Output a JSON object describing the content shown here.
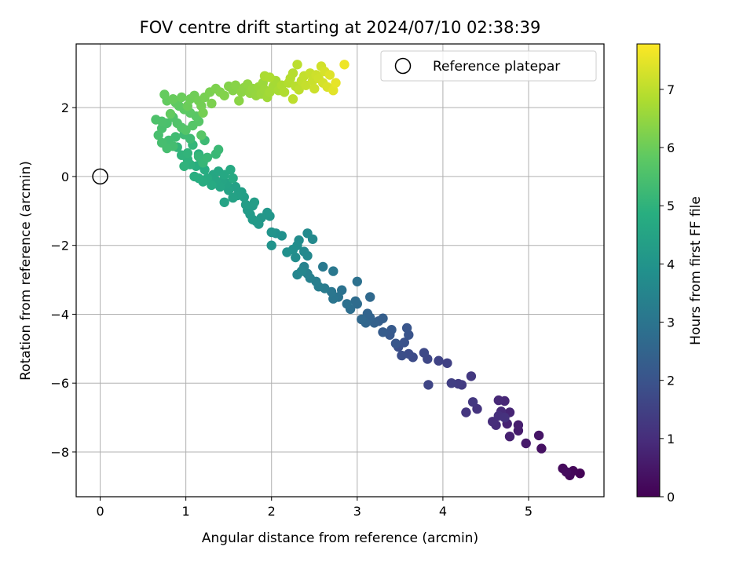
{
  "chart_data": {
    "type": "scatter",
    "title": "FOV centre drift starting at 2024/07/10 02:38:39",
    "xlabel": "Angular distance from reference (arcmin)",
    "ylabel": "Rotation from reference (arcmin)",
    "xlim": [
      -0.28,
      5.88
    ],
    "ylim": [
      -9.3,
      3.85
    ],
    "xticks": [
      0,
      1,
      2,
      3,
      4,
      5
    ],
    "yticks": [
      -8,
      -6,
      -4,
      -2,
      0,
      2
    ],
    "grid": true,
    "legend": {
      "position": "top-right",
      "entries": [
        "Reference platepar"
      ]
    },
    "reference_point": {
      "x": 0,
      "y": 0,
      "label": "Reference platepar",
      "marker": "open-circle"
    },
    "colorbar": {
      "label": "Hours from first FF file",
      "colormap": "viridis",
      "range": [
        0,
        7.78
      ],
      "ticks": [
        0,
        1,
        2,
        3,
        4,
        5,
        6,
        7
      ]
    },
    "points_note": "Colour value c = hours from first FF file",
    "points": [
      [
        5.6,
        -8.62,
        0.05
      ],
      [
        5.52,
        -8.55,
        0.1
      ],
      [
        5.48,
        -8.68,
        0.15
      ],
      [
        5.4,
        -8.48,
        0.2
      ],
      [
        5.44,
        -8.58,
        0.25
      ],
      [
        5.15,
        -7.9,
        0.35
      ],
      [
        5.12,
        -7.52,
        0.45
      ],
      [
        4.97,
        -7.75,
        0.55
      ],
      [
        4.88,
        -7.38,
        0.6
      ],
      [
        4.88,
        -7.22,
        0.65
      ],
      [
        4.78,
        -7.55,
        0.7
      ],
      [
        4.75,
        -7.18,
        0.75
      ],
      [
        4.78,
        -6.85,
        0.8
      ],
      [
        4.72,
        -6.52,
        0.85
      ],
      [
        4.65,
        -6.5,
        0.88
      ],
      [
        4.68,
        -6.82,
        0.92
      ],
      [
        4.62,
        -7.22,
        0.95
      ],
      [
        4.58,
        -7.12,
        1.0
      ],
      [
        4.65,
        -6.95,
        1.05
      ],
      [
        4.72,
        -7.0,
        1.1
      ],
      [
        4.4,
        -6.75,
        1.15
      ],
      [
        4.27,
        -6.85,
        1.2
      ],
      [
        4.35,
        -6.55,
        1.25
      ],
      [
        4.33,
        -5.8,
        1.3
      ],
      [
        4.22,
        -6.05,
        1.35
      ],
      [
        4.18,
        -6.02,
        1.4
      ],
      [
        4.1,
        -6.0,
        1.45
      ],
      [
        4.05,
        -5.42,
        1.5
      ],
      [
        3.95,
        -5.35,
        1.55
      ],
      [
        3.83,
        -6.05,
        1.6
      ],
      [
        3.82,
        -5.3,
        1.65
      ],
      [
        3.78,
        -5.12,
        1.7
      ],
      [
        3.65,
        -5.25,
        1.75
      ],
      [
        3.6,
        -5.15,
        1.8
      ],
      [
        3.52,
        -5.2,
        1.85
      ],
      [
        3.48,
        -4.95,
        1.9
      ],
      [
        3.55,
        -4.82,
        1.95
      ],
      [
        3.6,
        -4.6,
        2.0
      ],
      [
        3.58,
        -4.4,
        2.05
      ],
      [
        3.45,
        -4.85,
        2.1
      ],
      [
        3.38,
        -4.6,
        2.15
      ],
      [
        3.4,
        -4.45,
        2.2
      ],
      [
        3.3,
        -4.52,
        2.25
      ],
      [
        3.25,
        -4.2,
        2.3
      ],
      [
        3.3,
        -4.12,
        2.35
      ],
      [
        3.2,
        -4.25,
        2.4
      ],
      [
        3.15,
        -4.1,
        2.45
      ],
      [
        3.12,
        -3.98,
        2.5
      ],
      [
        3.1,
        -4.25,
        2.55
      ],
      [
        3.05,
        -4.15,
        2.6
      ],
      [
        3.15,
        -3.5,
        2.65
      ],
      [
        3.0,
        -3.7,
        2.7
      ],
      [
        2.98,
        -3.62,
        2.75
      ],
      [
        2.92,
        -3.85,
        2.8
      ],
      [
        2.88,
        -3.7,
        2.85
      ],
      [
        3.0,
        -3.05,
        2.88
      ],
      [
        2.82,
        -3.3,
        2.92
      ],
      [
        2.78,
        -3.5,
        2.95
      ],
      [
        2.72,
        -3.55,
        3.0
      ],
      [
        2.7,
        -3.35,
        3.05
      ],
      [
        2.72,
        -2.75,
        3.1
      ],
      [
        2.6,
        -2.62,
        3.15
      ],
      [
        2.62,
        -3.25,
        3.2
      ],
      [
        2.55,
        -3.2,
        3.25
      ],
      [
        2.52,
        -3.05,
        3.3
      ],
      [
        2.45,
        -2.95,
        3.35
      ],
      [
        2.42,
        -2.82,
        3.4
      ],
      [
        2.38,
        -2.62,
        3.45
      ],
      [
        2.3,
        -2.85,
        3.5
      ],
      [
        2.35,
        -2.75,
        3.55
      ],
      [
        2.42,
        -2.3,
        3.6
      ],
      [
        2.38,
        -2.18,
        3.62
      ],
      [
        2.48,
        -1.82,
        3.65
      ],
      [
        2.42,
        -1.65,
        3.68
      ],
      [
        2.32,
        -1.85,
        3.72
      ],
      [
        2.3,
        -2.0,
        3.75
      ],
      [
        2.28,
        -2.35,
        3.78
      ],
      [
        2.25,
        -2.12,
        3.82
      ],
      [
        2.18,
        -2.2,
        3.85
      ],
      [
        2.12,
        -1.72,
        3.88
      ],
      [
        2.05,
        -1.65,
        3.9
      ],
      [
        2.0,
        -2.0,
        3.95
      ],
      [
        2.0,
        -1.62,
        4.0
      ],
      [
        1.98,
        -1.15,
        4.05
      ],
      [
        1.95,
        -1.05,
        4.08
      ],
      [
        1.88,
        -1.2,
        4.1
      ],
      [
        1.85,
        -1.38,
        4.12
      ],
      [
        1.82,
        -1.3,
        4.15
      ],
      [
        1.78,
        -1.25,
        4.18
      ],
      [
        1.75,
        -1.1,
        4.2
      ],
      [
        1.72,
        -0.98,
        4.22
      ],
      [
        1.78,
        -0.85,
        4.25
      ],
      [
        1.8,
        -0.75,
        4.28
      ],
      [
        1.7,
        -0.82,
        4.3
      ],
      [
        1.68,
        -0.6,
        4.32
      ],
      [
        1.65,
        -0.45,
        4.35
      ],
      [
        1.6,
        -0.55,
        4.38
      ],
      [
        1.58,
        -0.3,
        4.4
      ],
      [
        1.55,
        -0.62,
        4.42
      ],
      [
        1.5,
        -0.4,
        4.45
      ],
      [
        1.45,
        -0.75,
        4.48
      ],
      [
        1.48,
        -0.2,
        4.5
      ],
      [
        1.42,
        -0.15,
        4.52
      ],
      [
        1.4,
        -0.3,
        4.55
      ],
      [
        1.35,
        -0.12,
        4.58
      ],
      [
        1.32,
        0.05,
        4.6
      ],
      [
        1.38,
        0.15,
        4.62
      ],
      [
        1.45,
        0.05,
        4.65
      ],
      [
        1.52,
        0.2,
        4.68
      ],
      [
        1.55,
        -0.05,
        4.7
      ],
      [
        1.3,
        -0.25,
        4.72
      ],
      [
        1.25,
        -0.05,
        4.75
      ],
      [
        1.22,
        0.2,
        4.78
      ],
      [
        1.2,
        -0.15,
        4.8
      ],
      [
        1.15,
        -0.05,
        4.82
      ],
      [
        1.1,
        0.0,
        4.85
      ],
      [
        1.12,
        0.3,
        4.88
      ],
      [
        1.18,
        0.45,
        4.9
      ],
      [
        1.15,
        0.65,
        4.92
      ],
      [
        1.05,
        0.35,
        4.95
      ],
      [
        1.02,
        0.5,
        4.98
      ],
      [
        0.98,
        0.3,
        5.0
      ],
      [
        0.95,
        0.62,
        5.02
      ],
      [
        1.02,
        0.68,
        5.05
      ],
      [
        0.9,
        0.85,
        5.08
      ],
      [
        1.08,
        0.92,
        5.1
      ],
      [
        1.15,
        0.58,
        5.12
      ],
      [
        1.2,
        0.4,
        5.15
      ],
      [
        1.25,
        0.55,
        5.18
      ],
      [
        1.35,
        0.65,
        5.2
      ],
      [
        1.38,
        0.78,
        5.22
      ],
      [
        1.22,
        1.05,
        5.25
      ],
      [
        1.05,
        1.1,
        5.28
      ],
      [
        0.98,
        1.22,
        5.3
      ],
      [
        0.88,
        1.15,
        5.32
      ],
      [
        0.8,
        1.05,
        5.35
      ],
      [
        0.85,
        0.88,
        5.38
      ],
      [
        0.78,
        0.82,
        5.4
      ],
      [
        0.72,
        0.98,
        5.42
      ],
      [
        0.68,
        1.2,
        5.45
      ],
      [
        0.72,
        1.4,
        5.48
      ],
      [
        0.78,
        1.55,
        5.5
      ],
      [
        0.72,
        1.6,
        5.52
      ],
      [
        0.65,
        1.65,
        5.55
      ],
      [
        0.85,
        1.72,
        5.58
      ],
      [
        0.9,
        1.55,
        5.6
      ],
      [
        0.95,
        1.42,
        5.62
      ],
      [
        1.0,
        1.35,
        5.65
      ],
      [
        1.08,
        1.48,
        5.68
      ],
      [
        1.15,
        1.6,
        5.7
      ],
      [
        1.18,
        1.2,
        5.72
      ],
      [
        1.12,
        1.75,
        5.75
      ],
      [
        1.05,
        1.85,
        5.78
      ],
      [
        0.98,
        1.95,
        5.8
      ],
      [
        0.92,
        2.05,
        5.82
      ],
      [
        0.88,
        2.15,
        5.85
      ],
      [
        0.82,
        1.82,
        5.88
      ],
      [
        0.78,
        2.2,
        5.9
      ],
      [
        0.75,
        2.38,
        5.92
      ],
      [
        0.85,
        2.25,
        5.95
      ],
      [
        0.95,
        2.3,
        5.98
      ],
      [
        1.02,
        2.05,
        6.0
      ],
      [
        1.05,
        2.25,
        6.02
      ],
      [
        1.1,
        2.35,
        6.05
      ],
      [
        1.15,
        2.2,
        6.08
      ],
      [
        1.18,
        2.05,
        6.1
      ],
      [
        1.2,
        1.85,
        6.12
      ],
      [
        1.22,
        2.3,
        6.15
      ],
      [
        1.28,
        2.45,
        6.18
      ],
      [
        1.3,
        2.12,
        6.2
      ],
      [
        1.35,
        2.55,
        6.22
      ],
      [
        1.4,
        2.45,
        6.25
      ],
      [
        1.45,
        2.35,
        6.28
      ],
      [
        1.5,
        2.62,
        6.3
      ],
      [
        1.55,
        2.5,
        6.32
      ],
      [
        1.58,
        2.65,
        6.35
      ],
      [
        1.62,
        2.2,
        6.38
      ],
      [
        1.65,
        2.45,
        6.4
      ],
      [
        1.68,
        2.58,
        6.42
      ],
      [
        1.72,
        2.68,
        6.45
      ],
      [
        1.75,
        2.42,
        6.48
      ],
      [
        1.78,
        2.55,
        6.5
      ],
      [
        1.82,
        2.35,
        6.52
      ],
      [
        1.85,
        2.6,
        6.55
      ],
      [
        1.88,
        2.4,
        6.58
      ],
      [
        1.9,
        2.72,
        6.6
      ],
      [
        1.92,
        2.52,
        6.62
      ],
      [
        1.95,
        2.3,
        6.65
      ],
      [
        1.98,
        2.45,
        6.68
      ],
      [
        2.02,
        2.62,
        6.7
      ],
      [
        2.05,
        2.78,
        6.72
      ],
      [
        2.08,
        2.5,
        6.75
      ],
      [
        1.92,
        2.92,
        6.78
      ],
      [
        1.98,
        2.88,
        6.8
      ],
      [
        2.12,
        2.65,
        6.82
      ],
      [
        2.15,
        2.45,
        6.85
      ],
      [
        2.2,
        2.72,
        6.88
      ],
      [
        2.22,
        2.85,
        6.9
      ],
      [
        2.25,
        3.0,
        6.92
      ],
      [
        2.28,
        2.62,
        6.95
      ],
      [
        2.3,
        3.25,
        6.98
      ],
      [
        2.25,
        2.25,
        7.0
      ],
      [
        2.32,
        2.52,
        7.02
      ],
      [
        2.35,
        2.78,
        7.05
      ],
      [
        2.38,
        2.92,
        7.08
      ],
      [
        2.4,
        2.65,
        7.1
      ],
      [
        2.45,
        3.0,
        7.12
      ],
      [
        2.48,
        2.78,
        7.15
      ],
      [
        2.5,
        2.55,
        7.18
      ],
      [
        2.52,
        2.95,
        7.2
      ],
      [
        2.55,
        2.85,
        7.22
      ],
      [
        2.58,
        3.2,
        7.25
      ],
      [
        2.6,
        2.72,
        7.28
      ],
      [
        2.62,
        3.05,
        7.3
      ],
      [
        2.65,
        2.6,
        7.35
      ],
      [
        2.68,
        2.95,
        7.4
      ],
      [
        2.72,
        2.5,
        7.45
      ],
      [
        2.75,
        2.72,
        7.5
      ],
      [
        2.85,
        3.25,
        7.6
      ]
    ]
  }
}
